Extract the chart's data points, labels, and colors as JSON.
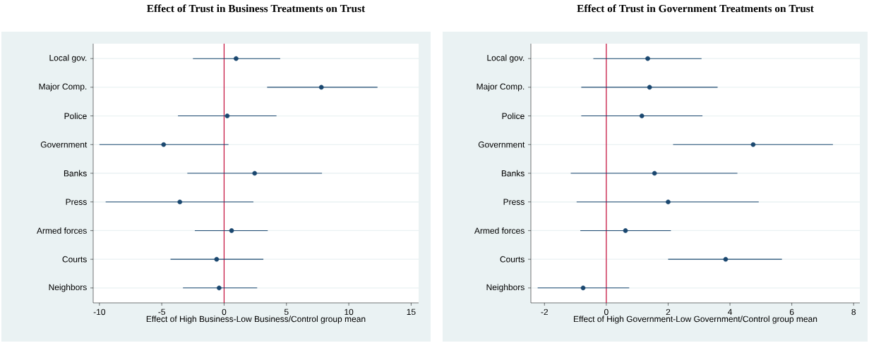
{
  "chart_data": [
    {
      "type": "scatter",
      "orientation": "horizontal",
      "title": "Effect of Trust in Business Treatments on Trust",
      "xlabel": "Effect of High Business-Low Business/Control group mean",
      "categories": [
        "Local gov.",
        "Major Comp.",
        "Police",
        "Government",
        "Banks",
        "Press",
        "Armed forces",
        "Courts",
        "Neighbors"
      ],
      "values": [
        0.96,
        7.8,
        0.25,
        -4.85,
        2.45,
        -3.55,
        0.6,
        -0.6,
        -0.4
      ],
      "errors": [
        [
          -2.5,
          4.5
        ],
        [
          3.45,
          12.3
        ],
        [
          -3.7,
          4.2
        ],
        [
          -10.0,
          0.35
        ],
        [
          -2.95,
          7.85
        ],
        [
          -9.5,
          2.35
        ],
        [
          -2.35,
          3.5
        ],
        [
          -4.3,
          3.15
        ],
        [
          -3.3,
          2.65
        ]
      ],
      "color": "#1a476f",
      "marker": "circle",
      "grid": "y",
      "xlim": [
        -10.5,
        15.6
      ],
      "xticks": [
        -10,
        -5,
        0,
        5,
        10,
        15
      ],
      "ref_lines": [
        {
          "axis": "x",
          "value": 0,
          "color": "#c10534"
        }
      ]
    },
    {
      "type": "scatter",
      "orientation": "horizontal",
      "title": "Effect of Trust in Government Treatments on Trust",
      "xlabel": "Effect of High Government-Low Government/Control group mean",
      "categories": [
        "Local gov.",
        "Major Comp.",
        "Police",
        "Government",
        "Banks",
        "Press",
        "Armed forces",
        "Courts",
        "Neighbors"
      ],
      "values": [
        1.34,
        1.4,
        1.15,
        4.75,
        1.56,
        2.0,
        0.62,
        3.86,
        -0.75
      ],
      "errors": [
        [
          -0.42,
          3.08
        ],
        [
          -0.81,
          3.6
        ],
        [
          -0.81,
          3.11
        ],
        [
          2.16,
          7.33
        ],
        [
          -1.15,
          4.24
        ],
        [
          -0.96,
          4.93
        ],
        [
          -0.84,
          2.09
        ],
        [
          2.0,
          5.68
        ],
        [
          -2.22,
          0.74
        ]
      ],
      "color": "#1a476f",
      "marker": "circle",
      "grid": "y",
      "xlim": [
        -2.44,
        8.2
      ],
      "xticks": [
        -2,
        0,
        2,
        4,
        6,
        8
      ],
      "ref_lines": [
        {
          "axis": "x",
          "value": 0,
          "color": "#c10534"
        }
      ]
    }
  ]
}
